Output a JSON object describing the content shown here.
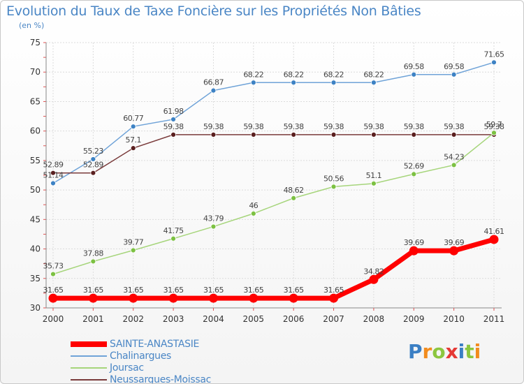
{
  "title": "Evolution du Taux de Taxe Foncière sur les Propriétés Non Bâties",
  "unit": "(en %)",
  "logo": "Proxiti",
  "chart_data": {
    "type": "line",
    "title": "Evolution du Taux de Taxe Foncière sur les Propriétés Non Bâties",
    "ylabel": "(en %)",
    "xlabel": "",
    "ylim": [
      30,
      75
    ],
    "yticks": [
      30,
      35,
      40,
      45,
      50,
      55,
      60,
      65,
      70,
      75
    ],
    "x": [
      "2000",
      "2001",
      "2002",
      "2003",
      "2004",
      "2005",
      "2006",
      "2007",
      "2008",
      "2009",
      "2010",
      "2011"
    ],
    "legend_position": "bottom-left",
    "series": [
      {
        "name": "SAINTE-ANASTASIE",
        "color": "#ff0000",
        "highlight": true,
        "values": [
          31.65,
          31.65,
          31.65,
          31.65,
          31.65,
          31.65,
          31.65,
          31.65,
          34.82,
          39.69,
          39.69,
          41.61
        ],
        "labels": [
          "31.65",
          "31.65",
          "31.65",
          "31.65",
          "31.65",
          "31.65",
          "31.65",
          "31.65",
          "34.82",
          "39.69",
          "39.69",
          "41.61"
        ]
      },
      {
        "name": "Chalinargues",
        "color": "#6fa3d8",
        "marker": "#3d82c4",
        "values": [
          51.14,
          55.23,
          60.77,
          61.98,
          66.87,
          68.22,
          68.22,
          68.22,
          68.22,
          69.58,
          69.58,
          71.65
        ],
        "labels": [
          "51.14",
          "55.23",
          "60.77",
          "61.98",
          "66.87",
          "68.22",
          "68.22",
          "68.22",
          "68.22",
          "69.58",
          "69.58",
          "71.65"
        ]
      },
      {
        "name": "Joursac",
        "color": "#a6d57b",
        "marker": "#7cc142",
        "values": [
          35.73,
          37.88,
          39.77,
          41.75,
          43.79,
          46,
          48.62,
          50.56,
          51.1,
          52.69,
          54.23,
          59.7
        ],
        "labels": [
          "35.73",
          "37.88",
          "39.77",
          "41.75",
          "43.79",
          "46",
          "48.62",
          "50.56",
          "51.1",
          "52.69",
          "54.23",
          "59.7"
        ]
      },
      {
        "name": "Neussargues-Moissac",
        "color": "#7a3b3b",
        "marker": "#5a1f1f",
        "values": [
          52.89,
          52.89,
          57.1,
          59.38,
          59.38,
          59.38,
          59.38,
          59.38,
          59.38,
          59.38,
          59.38,
          59.38
        ],
        "labels": [
          "52.89",
          "52.89",
          "57.1",
          "59.38",
          "59.38",
          "59.38",
          "59.38",
          "59.38",
          "59.38",
          "59.38",
          "59.38",
          "59.38"
        ]
      }
    ]
  }
}
